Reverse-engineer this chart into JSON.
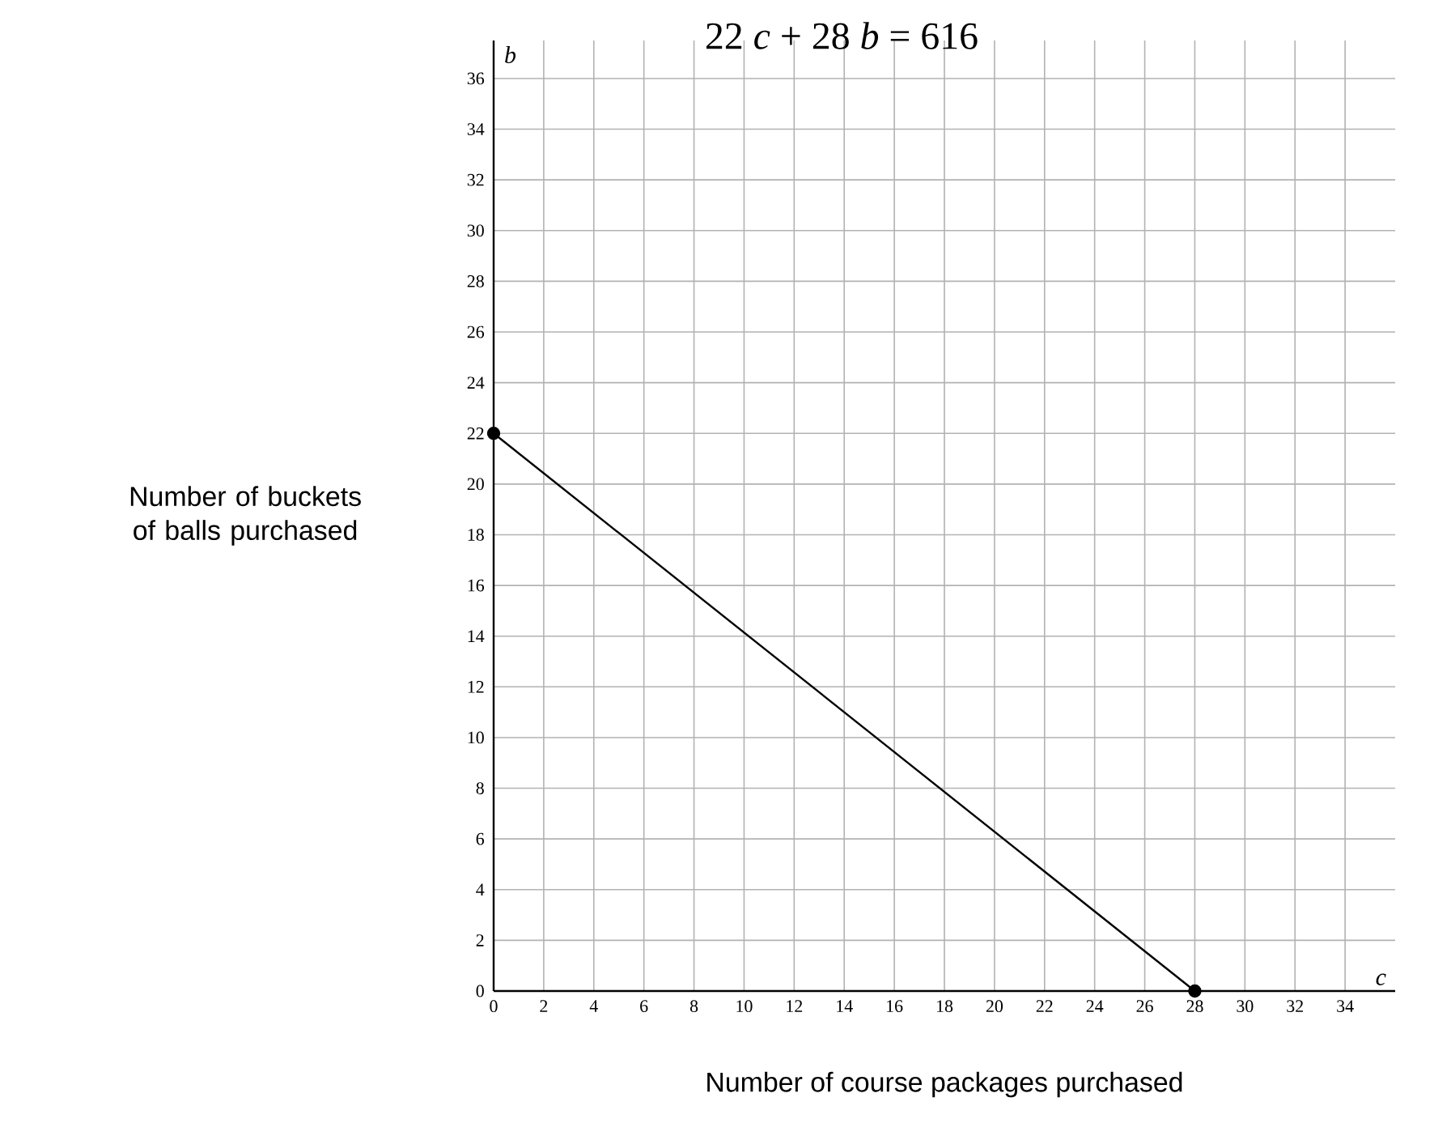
{
  "chart_data": {
    "type": "line",
    "title": "22 *c* + 28 *b* = 616",
    "xlabel": "Number of course packages purchased",
    "ylabel": "Number of buckets of balls purchased",
    "annotations": [
      "*b*",
      "*c*"
    ],
    "series": [
      {
        "color": "#000000",
        "x": [
          0,
          28
        ],
        "values": [
          22,
          0
        ]
      }
    ],
    "xlim": [
      0,
      36
    ],
    "ylim": [
      0,
      37.5
    ],
    "xticks": [
      0,
      2,
      4,
      6,
      8,
      10,
      12,
      14,
      16,
      18,
      20,
      22,
      24,
      26,
      28,
      30,
      32,
      34
    ],
    "yticks": [
      0,
      2,
      4,
      6,
      8,
      10,
      12,
      14,
      16,
      18,
      20,
      22,
      24,
      26,
      28,
      30,
      32,
      34,
      36
    ],
    "grid": true,
    "marker": "circle",
    "line_style": "solid"
  }
}
